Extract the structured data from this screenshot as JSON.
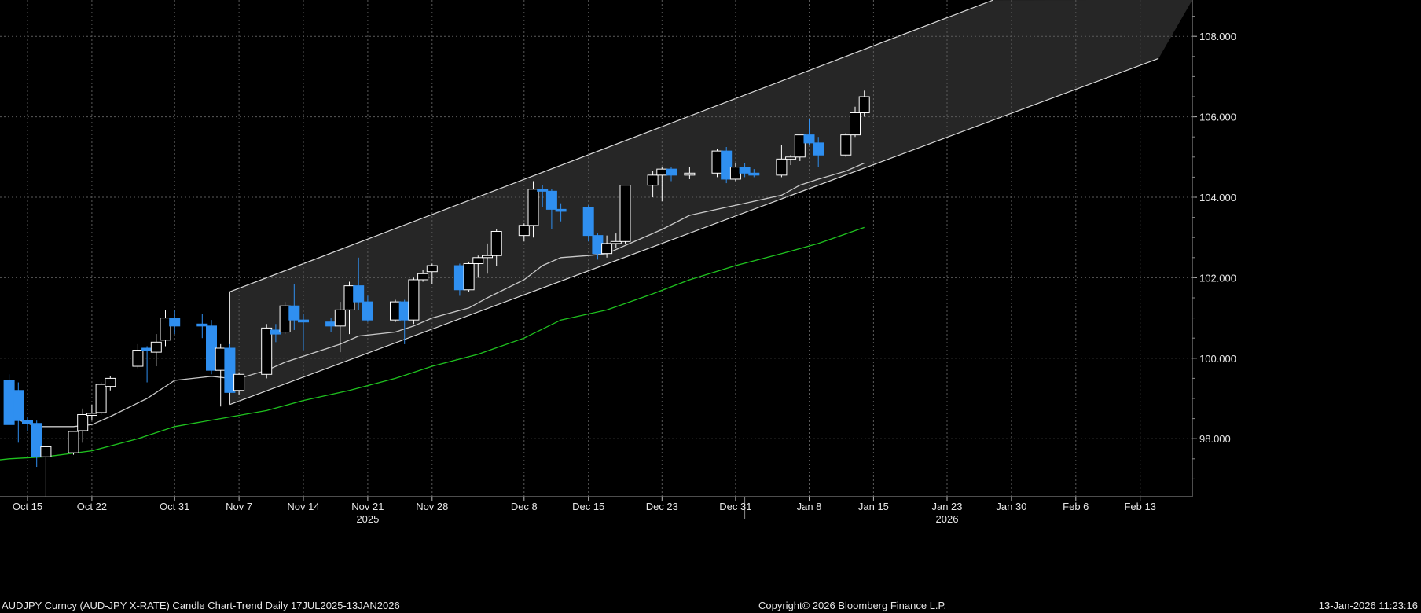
{
  "footer": {
    "left": "AUDJPY Curncy (AUD-JPY X-RATE) Candle Chart-Trend Daily 17JUL2025-13JAN2026",
    "center": "Copyright© 2026 Bloomberg Finance L.P.",
    "right": "13-Jan-2026 11:23:16"
  },
  "colors": {
    "background": "#000000",
    "grid": "#5a5a5a",
    "up_candle_fill": "#000000",
    "up_candle_border": "#ffffff",
    "down_candle": "#2f8ff0",
    "short_ma": "#c8c8c8",
    "long_ma": "#1fc21f",
    "channel_fill": "#262626",
    "channel_line": "#d8d8d8"
  },
  "chart_data": {
    "type": "candlestick",
    "instrument": "AUDJPY Curncy (AUD-JPY X-RATE)",
    "y_axis": {
      "position": "right",
      "ticks": [
        98.0,
        100.0,
        102.0,
        104.0,
        106.0,
        108.0
      ],
      "tick_labels": [
        "98.000",
        "100.000",
        "102.000",
        "104.000",
        "106.000",
        "108.000"
      ],
      "ylim": [
        96.5,
        108.9
      ]
    },
    "x_axis": {
      "ticks": [
        {
          "date": "2025-10-15",
          "label": "Oct 15"
        },
        {
          "date": "2025-10-22",
          "label": "Oct 22"
        },
        {
          "date": "2025-10-31",
          "label": "Oct 31"
        },
        {
          "date": "2025-11-07",
          "label": "Nov 7"
        },
        {
          "date": "2025-11-14",
          "label": "Nov 14"
        },
        {
          "date": "2025-11-21",
          "label": "Nov 21"
        },
        {
          "date": "2025-11-28",
          "label": "Nov 28"
        },
        {
          "date": "2025-12-08",
          "label": "Dec 8"
        },
        {
          "date": "2025-12-15",
          "label": "Dec 15"
        },
        {
          "date": "2025-12-23",
          "label": "Dec 23"
        },
        {
          "date": "2025-12-31",
          "label": "Dec 31"
        },
        {
          "date": "2026-01-08",
          "label": "Jan 8"
        },
        {
          "date": "2026-01-15",
          "label": "Jan 15"
        },
        {
          "date": "2026-01-23",
          "label": "Jan 23"
        },
        {
          "date": "2026-01-30",
          "label": "Jan 30"
        },
        {
          "date": "2026-02-06",
          "label": "Feb 6"
        },
        {
          "date": "2026-02-13",
          "label": "Feb 13"
        }
      ],
      "year_labels": [
        {
          "date": "2025-11-21",
          "label": "2025"
        },
        {
          "date": "2026-01-23",
          "label": "2026"
        }
      ],
      "grid": true
    },
    "candles": [
      {
        "date": "2025-10-13",
        "open": 99.45,
        "high": 99.6,
        "low": 98.4,
        "close": 98.35
      },
      {
        "date": "2025-10-14",
        "open": 99.2,
        "high": 99.4,
        "low": 97.9,
        "close": 98.45
      },
      {
        "date": "2025-10-15",
        "open": 98.45,
        "high": 98.55,
        "low": 98.2,
        "close": 98.38
      },
      {
        "date": "2025-10-16",
        "open": 98.38,
        "high": 98.45,
        "low": 97.3,
        "close": 97.55
      },
      {
        "date": "2025-10-17",
        "open": 97.55,
        "high": 97.8,
        "low": 96.5,
        "close": 97.8
      },
      {
        "date": "2025-10-20",
        "open": 97.65,
        "high": 98.2,
        "low": 97.6,
        "close": 98.18
      },
      {
        "date": "2025-10-21",
        "open": 98.2,
        "high": 98.75,
        "low": 97.9,
        "close": 98.6
      },
      {
        "date": "2025-10-22",
        "open": 98.58,
        "high": 98.85,
        "low": 98.45,
        "close": 98.63
      },
      {
        "date": "2025-10-23",
        "open": 98.65,
        "high": 99.4,
        "low": 98.6,
        "close": 99.35
      },
      {
        "date": "2025-10-24",
        "open": 99.3,
        "high": 99.55,
        "low": 99.2,
        "close": 99.5
      },
      {
        "date": "2025-10-27",
        "open": 99.8,
        "high": 100.35,
        "low": 99.75,
        "close": 100.2
      },
      {
        "date": "2025-10-28",
        "open": 100.25,
        "high": 100.3,
        "low": 99.4,
        "close": 100.2
      },
      {
        "date": "2025-10-29",
        "open": 100.15,
        "high": 100.6,
        "low": 99.8,
        "close": 100.4
      },
      {
        "date": "2025-10-30",
        "open": 100.45,
        "high": 101.2,
        "low": 100.3,
        "close": 101.0
      },
      {
        "date": "2025-10-31",
        "open": 101.0,
        "high": 101.2,
        "low": 100.6,
        "close": 100.8
      },
      {
        "date": "2025-11-03",
        "open": 100.85,
        "high": 101.1,
        "low": 100.5,
        "close": 100.8
      },
      {
        "date": "2025-11-04",
        "open": 100.8,
        "high": 100.95,
        "low": 99.6,
        "close": 99.7
      },
      {
        "date": "2025-11-05",
        "open": 99.7,
        "high": 100.35,
        "low": 98.8,
        "close": 100.25
      },
      {
        "date": "2025-11-06",
        "open": 100.25,
        "high": 100.35,
        "low": 99.15,
        "close": 99.15
      },
      {
        "date": "2025-11-07",
        "open": 99.2,
        "high": 99.65,
        "low": 99.1,
        "close": 99.6
      },
      {
        "date": "2025-11-10",
        "open": 99.6,
        "high": 100.85,
        "low": 99.5,
        "close": 100.75
      },
      {
        "date": "2025-11-11",
        "open": 100.7,
        "high": 100.85,
        "low": 100.4,
        "close": 100.6
      },
      {
        "date": "2025-11-12",
        "open": 100.65,
        "high": 101.4,
        "low": 100.6,
        "close": 101.3
      },
      {
        "date": "2025-11-13",
        "open": 101.3,
        "high": 101.85,
        "low": 100.7,
        "close": 100.95
      },
      {
        "date": "2025-11-14",
        "open": 100.95,
        "high": 101.1,
        "low": 100.2,
        "close": 100.9
      },
      {
        "date": "2025-11-17",
        "open": 100.9,
        "high": 101.0,
        "low": 100.65,
        "close": 100.8
      },
      {
        "date": "2025-11-18",
        "open": 100.8,
        "high": 101.4,
        "low": 100.15,
        "close": 101.2
      },
      {
        "date": "2025-11-19",
        "open": 101.2,
        "high": 101.9,
        "low": 100.6,
        "close": 101.8
      },
      {
        "date": "2025-11-20",
        "open": 101.8,
        "high": 102.5,
        "low": 101.2,
        "close": 101.4
      },
      {
        "date": "2025-11-21",
        "open": 101.4,
        "high": 101.55,
        "low": 100.9,
        "close": 100.95
      },
      {
        "date": "2025-11-24",
        "open": 100.95,
        "high": 101.45,
        "low": 100.9,
        "close": 101.4
      },
      {
        "date": "2025-11-25",
        "open": 101.4,
        "high": 101.45,
        "low": 100.35,
        "close": 100.95
      },
      {
        "date": "2025-11-26",
        "open": 100.95,
        "high": 102.0,
        "low": 100.85,
        "close": 101.95
      },
      {
        "date": "2025-11-27",
        "open": 101.95,
        "high": 102.2,
        "low": 101.9,
        "close": 102.1
      },
      {
        "date": "2025-11-28",
        "open": 102.15,
        "high": 102.35,
        "low": 101.85,
        "close": 102.3
      },
      {
        "date": "2025-12-01",
        "open": 102.3,
        "high": 102.35,
        "low": 101.55,
        "close": 101.7
      },
      {
        "date": "2025-12-02",
        "open": 101.7,
        "high": 102.4,
        "low": 101.65,
        "close": 102.35
      },
      {
        "date": "2025-12-03",
        "open": 102.35,
        "high": 102.55,
        "low": 102.0,
        "close": 102.5
      },
      {
        "date": "2025-12-04",
        "open": 102.5,
        "high": 102.85,
        "low": 102.1,
        "close": 102.55
      },
      {
        "date": "2025-12-05",
        "open": 102.55,
        "high": 103.2,
        "low": 102.3,
        "close": 103.15
      },
      {
        "date": "2025-12-08",
        "open": 103.05,
        "high": 103.35,
        "low": 102.9,
        "close": 103.3
      },
      {
        "date": "2025-12-09",
        "open": 103.3,
        "high": 104.4,
        "low": 103.0,
        "close": 104.2
      },
      {
        "date": "2025-12-10",
        "open": 104.2,
        "high": 104.3,
        "low": 103.75,
        "close": 104.15
      },
      {
        "date": "2025-12-11",
        "open": 104.15,
        "high": 104.2,
        "low": 103.2,
        "close": 103.7
      },
      {
        "date": "2025-12-12",
        "open": 103.7,
        "high": 103.85,
        "low": 103.4,
        "close": 103.65
      },
      {
        "date": "2025-12-15",
        "open": 103.75,
        "high": 103.8,
        "low": 102.9,
        "close": 103.05
      },
      {
        "date": "2025-12-16",
        "open": 103.05,
        "high": 103.1,
        "low": 102.45,
        "close": 102.6
      },
      {
        "date": "2025-12-17",
        "open": 102.6,
        "high": 103.05,
        "low": 102.5,
        "close": 102.85
      },
      {
        "date": "2025-12-18",
        "open": 102.85,
        "high": 103.1,
        "low": 102.75,
        "close": 102.9
      },
      {
        "date": "2025-12-19",
        "open": 102.9,
        "high": 104.3,
        "low": 102.85,
        "close": 104.3
      },
      {
        "date": "2025-12-22",
        "open": 104.3,
        "high": 104.65,
        "low": 104.0,
        "close": 104.55
      },
      {
        "date": "2025-12-23",
        "open": 104.55,
        "high": 104.75,
        "low": 103.9,
        "close": 104.7
      },
      {
        "date": "2025-12-24",
        "open": 104.7,
        "high": 104.75,
        "low": 104.4,
        "close": 104.55
      },
      {
        "date": "2025-12-26",
        "open": 104.55,
        "high": 104.75,
        "low": 104.45,
        "close": 104.6
      },
      {
        "date": "2025-12-29",
        "open": 104.6,
        "high": 105.2,
        "low": 104.5,
        "close": 105.15
      },
      {
        "date": "2025-12-30",
        "open": 105.15,
        "high": 105.25,
        "low": 104.35,
        "close": 104.45
      },
      {
        "date": "2025-12-31",
        "open": 104.45,
        "high": 104.85,
        "low": 104.4,
        "close": 104.75
      },
      {
        "date": "2026-01-01",
        "open": 104.75,
        "high": 104.85,
        "low": 104.5,
        "close": 104.6
      },
      {
        "date": "2026-01-02",
        "open": 104.6,
        "high": 104.7,
        "low": 104.5,
        "close": 104.55
      },
      {
        "date": "2026-01-05",
        "open": 104.55,
        "high": 105.3,
        "low": 104.5,
        "close": 104.95
      },
      {
        "date": "2026-01-06",
        "open": 104.95,
        "high": 105.05,
        "low": 104.8,
        "close": 105.0
      },
      {
        "date": "2026-01-07",
        "open": 105.0,
        "high": 105.55,
        "low": 104.9,
        "close": 105.55
      },
      {
        "date": "2026-01-08",
        "open": 105.55,
        "high": 105.95,
        "low": 105.3,
        "close": 105.35
      },
      {
        "date": "2026-01-09",
        "open": 105.35,
        "high": 105.5,
        "low": 104.75,
        "close": 105.05
      },
      {
        "date": "2026-01-12",
        "open": 105.05,
        "high": 105.6,
        "low": 105.0,
        "close": 105.55
      },
      {
        "date": "2026-01-13",
        "open": 105.55,
        "high": 106.25,
        "low": 105.5,
        "close": 106.1
      },
      {
        "date": "2026-01-14",
        "open": 106.1,
        "high": 106.65,
        "low": 106.0,
        "close": 106.5
      }
    ],
    "moving_averages": [
      {
        "color": "#c8c8c8",
        "points": [
          [
            "2025-10-13",
            98.55
          ],
          [
            "2025-10-16",
            98.3
          ],
          [
            "2025-10-20",
            98.3
          ],
          [
            "2025-10-22",
            98.35
          ],
          [
            "2025-10-24",
            98.55
          ],
          [
            "2025-10-28",
            99.0
          ],
          [
            "2025-10-31",
            99.45
          ],
          [
            "2025-11-04",
            99.55
          ],
          [
            "2025-11-06",
            99.5
          ],
          [
            "2025-11-07",
            99.5
          ],
          [
            "2025-11-10",
            99.7
          ],
          [
            "2025-11-12",
            99.9
          ],
          [
            "2025-11-14",
            100.05
          ],
          [
            "2025-11-18",
            100.35
          ],
          [
            "2025-11-20",
            100.55
          ],
          [
            "2025-11-24",
            100.65
          ],
          [
            "2025-11-26",
            100.8
          ],
          [
            "2025-11-28",
            101.0
          ],
          [
            "2025-12-02",
            101.25
          ],
          [
            "2025-12-04",
            101.5
          ],
          [
            "2025-12-08",
            101.95
          ],
          [
            "2025-12-10",
            102.3
          ],
          [
            "2025-12-12",
            102.5
          ],
          [
            "2025-12-15",
            102.55
          ],
          [
            "2025-12-17",
            102.6
          ],
          [
            "2025-12-19",
            102.8
          ],
          [
            "2025-12-23",
            103.2
          ],
          [
            "2025-12-26",
            103.55
          ],
          [
            "2025-12-30",
            103.75
          ],
          [
            "2026-01-01",
            103.85
          ],
          [
            "2026-01-05",
            104.05
          ],
          [
            "2026-01-07",
            104.3
          ],
          [
            "2026-01-09",
            104.45
          ],
          [
            "2026-01-12",
            104.65
          ],
          [
            "2026-01-14",
            104.85
          ]
        ]
      },
      {
        "color": "#1fc21f",
        "points": [
          [
            "2025-10-09",
            97.4
          ],
          [
            "2025-10-13",
            97.5
          ],
          [
            "2025-10-17",
            97.55
          ],
          [
            "2025-10-22",
            97.7
          ],
          [
            "2025-10-27",
            98.0
          ],
          [
            "2025-10-31",
            98.3
          ],
          [
            "2025-11-05",
            98.5
          ],
          [
            "2025-11-10",
            98.7
          ],
          [
            "2025-11-14",
            98.95
          ],
          [
            "2025-11-19",
            99.2
          ],
          [
            "2025-11-24",
            99.5
          ],
          [
            "2025-11-28",
            99.8
          ],
          [
            "2025-12-03",
            100.1
          ],
          [
            "2025-12-08",
            100.5
          ],
          [
            "2025-12-12",
            100.95
          ],
          [
            "2025-12-17",
            101.2
          ],
          [
            "2025-12-22",
            101.6
          ],
          [
            "2025-12-26",
            101.95
          ],
          [
            "2025-12-31",
            102.3
          ],
          [
            "2026-01-05",
            102.6
          ],
          [
            "2026-01-09",
            102.85
          ],
          [
            "2026-01-14",
            103.25
          ]
        ]
      }
    ],
    "trend_channel": {
      "upper": [
        [
          "2025-11-06",
          101.65
        ],
        [
          "2026-01-28",
          108.9
        ]
      ],
      "lower": [
        [
          "2025-11-06",
          98.85
        ],
        [
          "2026-02-15",
          107.45
        ]
      ]
    }
  }
}
